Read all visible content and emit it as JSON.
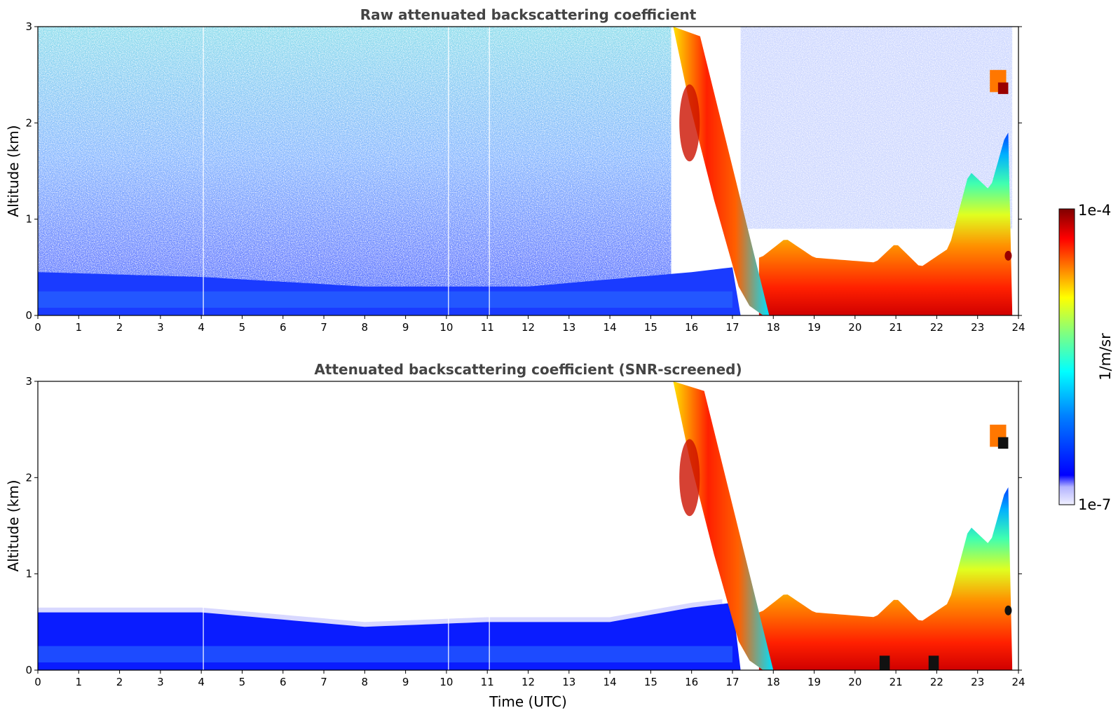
{
  "colorbar": {
    "max_label": "1e-4",
    "min_label": "1e-7",
    "unit_label": "1/m/sr",
    "scale": "log",
    "colors": [
      "#f0f0ff",
      "#c8c8ff",
      "#a0a0ff",
      "#0000ff",
      "#0080ff",
      "#00ffff",
      "#80ff80",
      "#ffff00",
      "#ff8000",
      "#ff0000",
      "#800000"
    ]
  },
  "chart_data": [
    {
      "type": "heatmap",
      "title": "Raw attenuated backscattering coefficient",
      "xlabel": "",
      "ylabel": "Altitude (km)",
      "xlim": [
        0,
        24
      ],
      "ylim": [
        0,
        3
      ],
      "xticks": [
        "0",
        "1",
        "2",
        "3",
        "4",
        "5",
        "6",
        "7",
        "8",
        "9",
        "10",
        "11",
        "12",
        "13",
        "14",
        "15",
        "16",
        "17",
        "18",
        "19",
        "20",
        "21",
        "22",
        "23",
        "24"
      ],
      "yticks": [
        "0",
        "1",
        "2",
        "3"
      ],
      "features": {
        "aerosol_layer_top_km": [
          [
            0,
            0.45
          ],
          [
            4,
            0.4
          ],
          [
            8,
            0.3
          ],
          [
            12,
            0.3
          ],
          [
            16,
            0.45
          ],
          [
            17,
            0.5
          ]
        ],
        "falling_cloud_band_edge_km": [
          [
            15.6,
            3.0
          ],
          [
            16.0,
            2.2
          ],
          [
            16.6,
            1.2
          ],
          [
            17.2,
            0.3
          ],
          [
            17.6,
            0.0
          ]
        ],
        "boundary_layer_top_km": [
          [
            17.7,
            0.6
          ],
          [
            18.3,
            0.8
          ],
          [
            19,
            0.6
          ],
          [
            20.5,
            0.55
          ],
          [
            21,
            0.75
          ],
          [
            21.6,
            0.5
          ],
          [
            22.3,
            0.7
          ],
          [
            22.8,
            1.5
          ],
          [
            23.3,
            1.3
          ],
          [
            23.7,
            1.9
          ]
        ],
        "elevated_cloud": {
          "time": 23.5,
          "altitude_km": 2.4
        }
      }
    },
    {
      "type": "heatmap",
      "title": "Attenuated backscattering coefficient (SNR-screened)",
      "xlabel": "Time (UTC)",
      "ylabel": "Altitude (km)",
      "xlim": [
        0,
        24
      ],
      "ylim": [
        0,
        3
      ],
      "xticks": [
        "0",
        "1",
        "2",
        "3",
        "4",
        "5",
        "6",
        "7",
        "8",
        "9",
        "10",
        "11",
        "12",
        "13",
        "14",
        "15",
        "16",
        "17",
        "18",
        "19",
        "20",
        "21",
        "22",
        "23",
        "24"
      ],
      "yticks": [
        "0",
        "1",
        "2",
        "3"
      ],
      "features": {
        "aerosol_layer_top_km": [
          [
            0,
            0.6
          ],
          [
            4,
            0.6
          ],
          [
            8,
            0.45
          ],
          [
            11,
            0.5
          ],
          [
            14,
            0.5
          ],
          [
            16,
            0.65
          ],
          [
            17,
            0.7
          ]
        ],
        "falling_cloud_band_edge_km": [
          [
            15.6,
            3.0
          ],
          [
            16.0,
            2.2
          ],
          [
            16.6,
            1.2
          ],
          [
            17.2,
            0.3
          ],
          [
            17.6,
            0.0
          ]
        ],
        "boundary_layer_top_km": [
          [
            17.7,
            0.6
          ],
          [
            18.3,
            0.8
          ],
          [
            19,
            0.6
          ],
          [
            20.5,
            0.55
          ],
          [
            21,
            0.75
          ],
          [
            21.6,
            0.5
          ],
          [
            22.3,
            0.7
          ],
          [
            22.8,
            1.5
          ],
          [
            23.3,
            1.3
          ],
          [
            23.7,
            1.9
          ]
        ],
        "elevated_cloud": {
          "time": 23.5,
          "altitude_km": 2.4
        }
      }
    }
  ]
}
